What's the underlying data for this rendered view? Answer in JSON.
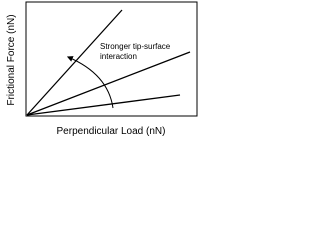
{
  "x_axis_label": "Perpendicular Load (nN)",
  "y_axis_label": "Frictional Force (nN)",
  "annotation": [
    "Stronger tip-surface",
    "interaction"
  ]
}
